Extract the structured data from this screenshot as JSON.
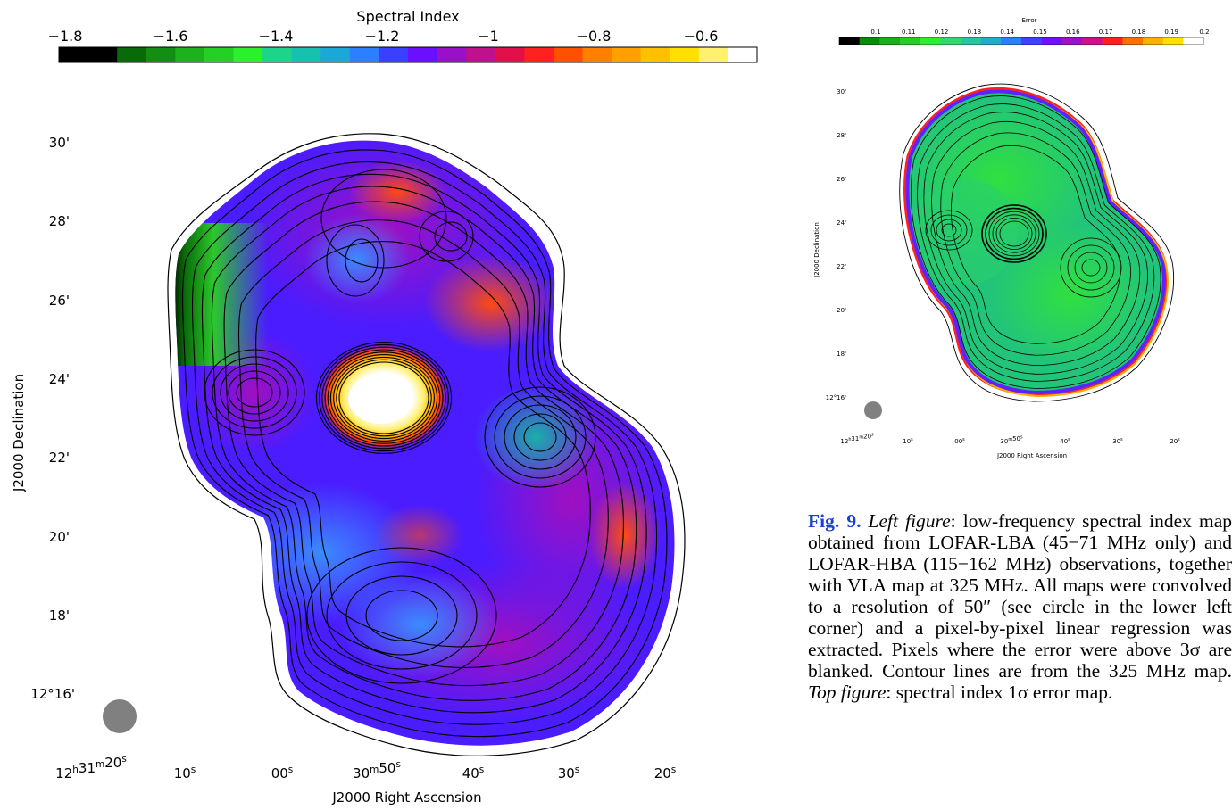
{
  "colors": {
    "spectral_colorbar": [
      "#000000",
      "#000000",
      "#0a6a0a",
      "#128e12",
      "#1cb21c",
      "#24d024",
      "#2cf02c",
      "#1ed48a",
      "#18c0b0",
      "#1aa8d6",
      "#2a80ff",
      "#3a40ff",
      "#6a10ff",
      "#9a10c8",
      "#c0108a",
      "#e0104a",
      "#ff2020",
      "#ff5000",
      "#ff8000",
      "#ffa000",
      "#ffc000",
      "#ffe000",
      "#fff070",
      "#ffffff"
    ],
    "error_colorbar": [
      "#000000",
      "#0a8a0a",
      "#18b018",
      "#22d022",
      "#2cf02c",
      "#30d870",
      "#22c8a0",
      "#1ab0c8",
      "#2a80ff",
      "#4040ff",
      "#7010ff",
      "#a010c8",
      "#d0108a",
      "#ff2020",
      "#ff7000",
      "#ffb000",
      "#ffe000",
      "#ffffff"
    ],
    "caption_fig_color": "#1a3fd6",
    "beam_color": "#808080"
  },
  "left_figure": {
    "colorbar_title": "Spectral Index",
    "colorbar_ticks": [
      "−1.8",
      "−1.6",
      "−1.4",
      "−1.2",
      "−1",
      "−0.8",
      "−0.6"
    ],
    "dec_ticks": [
      "30'",
      "28'",
      "26'",
      "24'",
      "22'",
      "20'",
      "18'",
      "12°16'"
    ],
    "ra_ticks": [
      "12h31m20s",
      "10s",
      "00s",
      "30m50s",
      "40s",
      "30s",
      "20s"
    ],
    "ylabel": "J2000 Declination",
    "xlabel": "J2000 Right Ascension"
  },
  "right_figure": {
    "colorbar_title": "Error",
    "colorbar_ticks": [
      "0.1",
      "0.11",
      "0.12",
      "0.13",
      "0.14",
      "0.15",
      "0.16",
      "0.17",
      "0.18",
      "0.19",
      "0.2"
    ],
    "dec_ticks": [
      "30'",
      "28'",
      "26'",
      "24'",
      "22'",
      "20'",
      "18'",
      "12°16'"
    ],
    "ra_ticks": [
      "12h31m20s",
      "10s",
      "00s",
      "30m50s",
      "40s",
      "30s",
      "20s"
    ],
    "ylabel": "J2000 Declination",
    "xlabel": "J2000 Right Ascension"
  },
  "caption": {
    "label": "Fig. 9.",
    "left_title": "Left figure",
    "text1": ": low-frequency spectral index map obtained from LOFAR-LBA (45−71 MHz only) and LOFAR-HBA (115−162 MHz) observations, together with VLA map at 325 MHz. All maps were convolved to a resolution of 50″ (see circle in the lower left corner) and a pixel-by-pixel linear regression was extracted. Pixels where the error were above 3σ are blanked. Contour lines are from the 325 MHz map. ",
    "top_title": "Top figure",
    "text2": ": spectral index 1σ error map."
  }
}
